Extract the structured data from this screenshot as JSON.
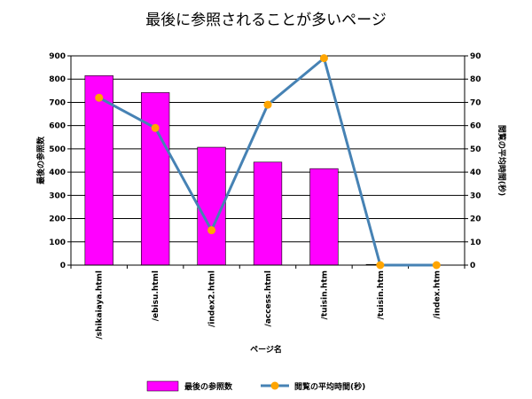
{
  "chart_data": {
    "type": "bar+line",
    "title": "最後に参照されることが多いページ",
    "xlabel": "ページ名",
    "ylabel_left": "最後の参照数",
    "ylabel_right": "閲覧の平均時間(秒)",
    "categories": [
      "/shikaiaya.html",
      "/ebisu.html",
      "/index2.html",
      "/access.html",
      "/tuisin.htm",
      "/tuisin.htm",
      "/index.htm"
    ],
    "ylim_left": [
      0,
      900
    ],
    "ylim_right": [
      0,
      90
    ],
    "yticks_left": [
      "0",
      "100",
      "200",
      "300",
      "400",
      "500",
      "600",
      "700",
      "800",
      "900"
    ],
    "yticks_right": [
      "0",
      "10",
      "20",
      "30",
      "40",
      "50",
      "60",
      "70",
      "80",
      "90"
    ],
    "grid": true,
    "legend_position": "bottom",
    "series": [
      {
        "name": "最後の参照数",
        "type": "bar",
        "axis": "left",
        "color": "#ff00ff",
        "values": [
          815,
          742,
          507,
          443,
          415,
          3,
          0
        ]
      },
      {
        "name": "閲覧の平均時間(秒)",
        "type": "line",
        "axis": "right",
        "color": "#4682b4",
        "marker_color": "#ffa500",
        "values": [
          72,
          59,
          15,
          69,
          89,
          0,
          0
        ]
      }
    ]
  }
}
